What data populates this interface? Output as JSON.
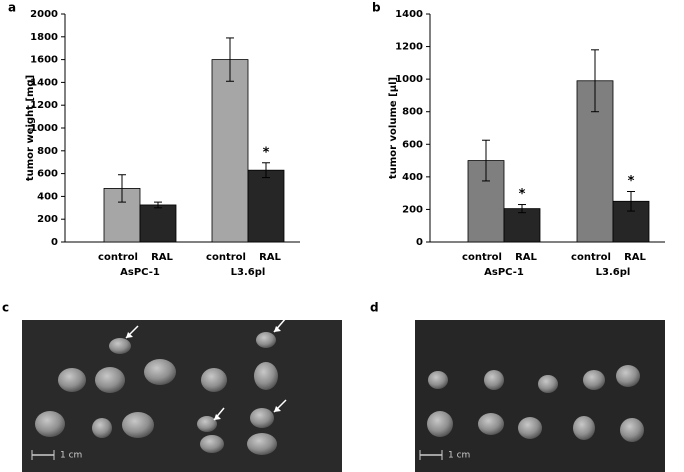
{
  "chart_data": [
    {
      "type": "bar",
      "panel": "a",
      "ylabel": "tumor weight [mg]",
      "categories": [
        "control",
        "RAL",
        "control",
        "RAL"
      ],
      "groups": [
        "AsPC-1",
        "L3.6pl"
      ],
      "colors": [
        "#a6a6a6",
        "#262626",
        "#a6a6a6",
        "#262626"
      ],
      "values": [
        470,
        325,
        1600,
        630
      ],
      "errors": [
        120,
        25,
        190,
        65
      ],
      "annotations": [
        null,
        null,
        null,
        "*"
      ],
      "ylim": [
        0,
        2000
      ],
      "yticks": [
        0,
        200,
        400,
        600,
        800,
        1000,
        1200,
        1400,
        1600,
        1800,
        2000
      ]
    },
    {
      "type": "bar",
      "panel": "b",
      "ylabel": "tumor volume [µl]",
      "categories": [
        "control",
        "RAL",
        "control",
        "RAL"
      ],
      "groups": [
        "AsPC-1",
        "L3.6pl"
      ],
      "colors": [
        "#7f7f7f",
        "#262626",
        "#7f7f7f",
        "#262626"
      ],
      "values": [
        500,
        205,
        990,
        250
      ],
      "errors": [
        125,
        25,
        190,
        60
      ],
      "annotations": [
        null,
        "*",
        null,
        "*"
      ],
      "ylim": [
        0,
        1400
      ],
      "yticks": [
        0,
        200,
        400,
        600,
        800,
        1000,
        1200,
        1400
      ]
    }
  ],
  "photos": [
    {
      "panel": "c",
      "scale_label": "1 cm"
    },
    {
      "panel": "d",
      "scale_label": "1 cm"
    }
  ]
}
